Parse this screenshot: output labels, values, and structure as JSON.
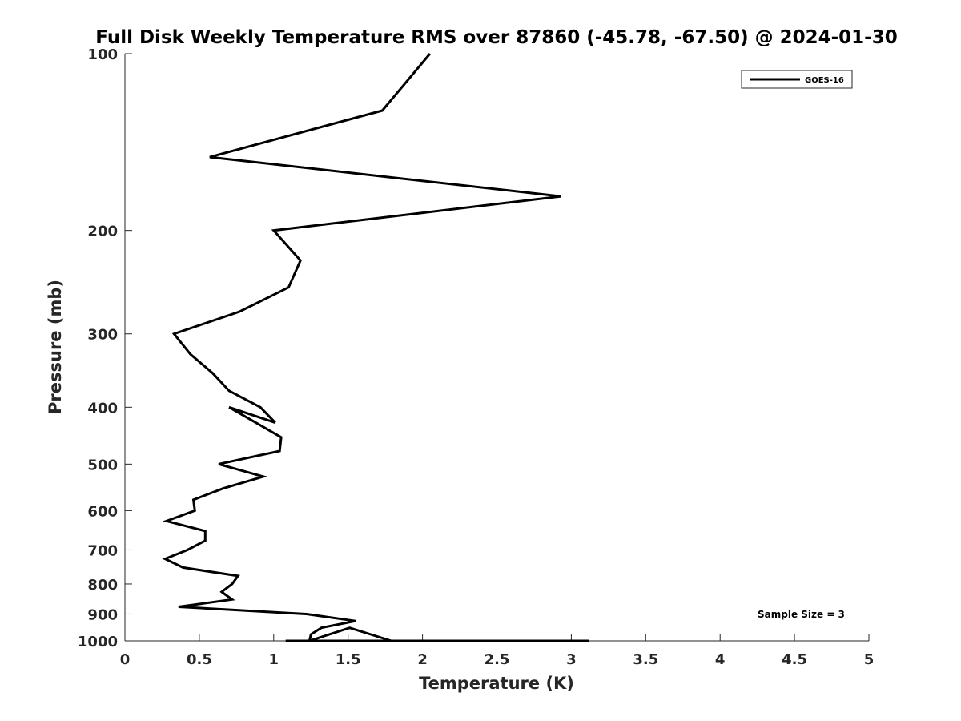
{
  "chart_data": {
    "type": "line",
    "title": "Full Disk Weekly Temperature RMS over 87860 (-45.78, -67.50) @ 2024-01-30",
    "xlabel": "Temperature (K)",
    "ylabel": "Pressure (mb)",
    "xlim": [
      0,
      5
    ],
    "ylim": [
      100,
      1000
    ],
    "y_scale": "log",
    "y_reversed": true,
    "x_ticks": [
      "0",
      "0.5",
      "1",
      "1.5",
      "2",
      "2.5",
      "3",
      "3.5",
      "4",
      "4.5",
      "5"
    ],
    "y_ticks": [
      "100",
      "200",
      "300",
      "400",
      "500",
      "600",
      "700",
      "800",
      "900",
      "1000"
    ],
    "grid": false,
    "legend_position": "top-right",
    "series": [
      {
        "name": "GOES-16",
        "color": "#000000",
        "x": [
          2.05,
          1.73,
          0.57,
          2.93,
          1.0,
          1.18,
          1.1,
          0.77,
          0.33,
          0.44,
          0.59,
          0.7,
          0.91,
          1.01,
          0.7,
          1.05,
          1.04,
          0.63,
          0.93,
          0.66,
          0.46,
          0.47,
          0.28,
          0.54,
          0.54,
          0.42,
          0.27,
          0.39,
          0.76,
          0.72,
          0.65,
          0.72,
          0.36,
          1.22,
          1.55,
          1.32,
          1.25,
          1.24,
          1.51,
          1.79,
          1.08,
          1.44,
          3.12
        ],
        "y": [
          100,
          125,
          150,
          175,
          200,
          225,
          250,
          275,
          300,
          325,
          350,
          375,
          400,
          425,
          400,
          450,
          475,
          500,
          525,
          550,
          575,
          600,
          625,
          650,
          675,
          700,
          725,
          750,
          775,
          800,
          825,
          850,
          875,
          900,
          925,
          950,
          975,
          1000,
          950,
          1000,
          1000,
          1000,
          1000
        ]
      }
    ],
    "annotation": "Sample Size = 3"
  }
}
